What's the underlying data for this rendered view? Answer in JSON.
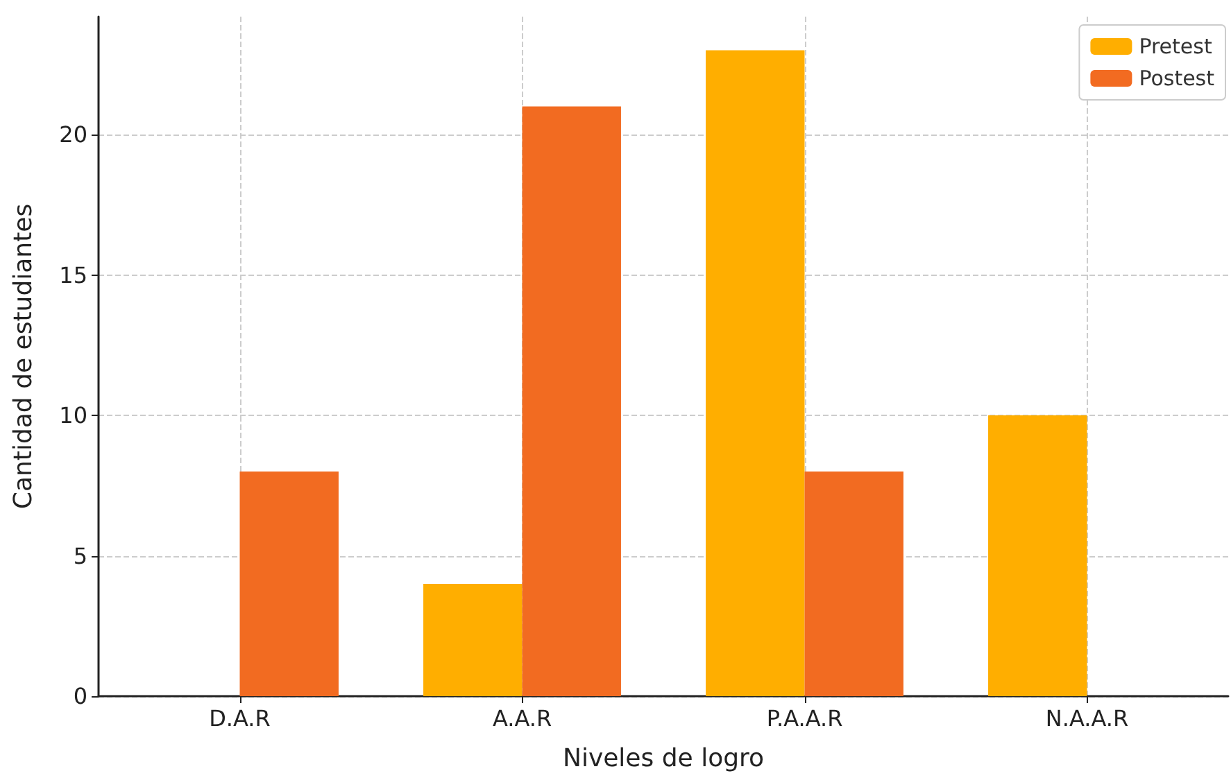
{
  "chart_data": {
    "type": "bar",
    "xlabel": "Niveles de logro",
    "ylabel": "Cantidad de estudiantes",
    "categories": [
      "D.A.R",
      "A.A.R",
      "P.A.A.R",
      "N.A.A.R"
    ],
    "series": [
      {
        "name": "Pretest",
        "color": "#ffae00",
        "values": [
          0,
          4,
          23,
          10
        ]
      },
      {
        "name": "Postest",
        "color": "#f26b21",
        "values": [
          8,
          21,
          8,
          0
        ]
      }
    ],
    "ylim": [
      0,
      24.2
    ],
    "yticks": [
      0,
      5,
      10,
      15,
      20
    ],
    "grid": true,
    "legend": "top right"
  }
}
